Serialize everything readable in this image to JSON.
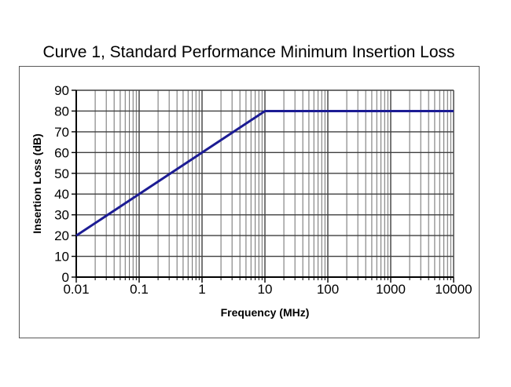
{
  "chart_data": {
    "type": "line",
    "title": "Curve 1, Standard Performance Minimum Insertion Loss",
    "xlabel": "Frequency (MHz)",
    "ylabel": "Insertion Loss (dB)",
    "x_scale": "log",
    "y_scale": "linear",
    "xlim": [
      0.01,
      10000
    ],
    "ylim": [
      0,
      90
    ],
    "xticks": [
      0.01,
      0.1,
      1,
      10,
      100,
      1000,
      10000
    ],
    "xtick_labels": [
      "0.01",
      "0.1",
      "1",
      "10",
      "100",
      "1000",
      "10000"
    ],
    "yticks": [
      0,
      10,
      20,
      30,
      40,
      50,
      60,
      70,
      80,
      90
    ],
    "grid": "major-both-plus-log-minor-x",
    "legend": "none",
    "series": [
      {
        "name": "Curve 1",
        "color": "#1c1c94",
        "width": 3,
        "points": [
          [
            0.01,
            20
          ],
          [
            10,
            80
          ],
          [
            10000,
            80
          ]
        ]
      }
    ]
  },
  "colors": {
    "background": "#ffffff",
    "plot_border": "#595959",
    "grid_major": "#3f3f3f",
    "grid_minor": "#6e6e6e",
    "axis": "#000000",
    "text": "#000000"
  }
}
